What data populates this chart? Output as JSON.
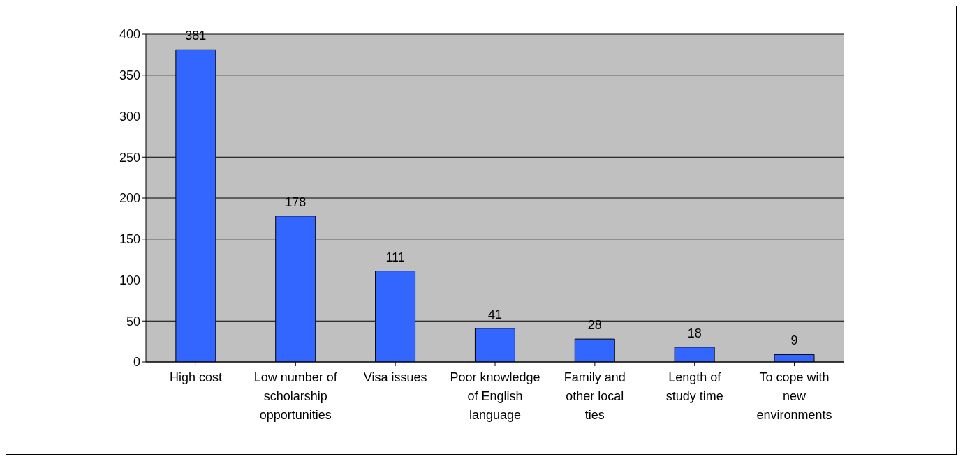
{
  "chart_data": {
    "type": "bar",
    "categories": [
      "High cost",
      "Low number of scholarship opportunities",
      "Visa issues",
      "Poor knowledge of English language",
      "Family and other local ties",
      "Length of study time",
      "To cope with new environments"
    ],
    "values": [
      381,
      178,
      111,
      41,
      28,
      18,
      9
    ],
    "color": "#3366ff",
    "ylim": [
      0,
      400
    ],
    "yticks": [
      0,
      50,
      100,
      150,
      200,
      250,
      300,
      350,
      400
    ],
    "grid": "y",
    "data_labels": true
  }
}
